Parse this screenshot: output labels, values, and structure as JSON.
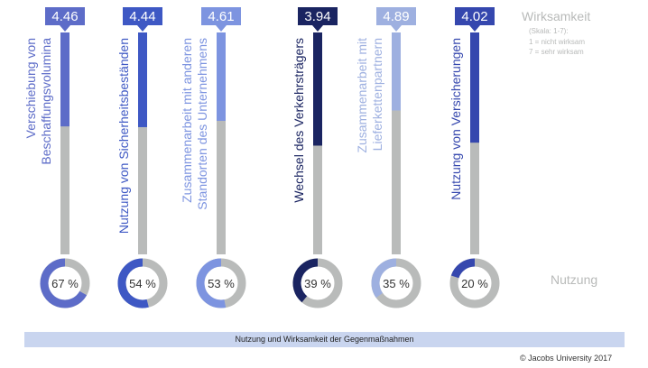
{
  "legend": {
    "title": "Wirksamkeit",
    "scale": "(Skala: 1-7):",
    "min": "1 = nicht wirksam",
    "max": "7 = sehr wirksam"
  },
  "usage_label": "Nutzung",
  "footer_caption": "Nutzung und Wirksamkeit der Gegenmaßnahmen",
  "credit": "© Jacobs University 2017",
  "colors": {
    "track": "#b9bbba",
    "background": "#ffffff"
  },
  "chart_data": {
    "type": "bar",
    "categories": [
      [
        "Verschiebung von",
        "Beschaffungsvolumina"
      ],
      [
        "Nutzung von Sicherheitsbeständen"
      ],
      [
        "Zusammenarbeit mit anderen",
        "Standorten des Unternehmens"
      ],
      [
        "Wechsel des Verkehrsträgers"
      ],
      [
        "Zusammenarbeit mit",
        "Lieferkettenpartnern"
      ],
      [
        "Nutzung von Versicherungen"
      ]
    ],
    "series": [
      {
        "values": [
          4.46,
          4.44,
          4.61,
          3.94,
          4.89,
          4.02
        ]
      },
      {
        "values": [
          67,
          54,
          53,
          39,
          35,
          20
        ]
      }
    ],
    "value_labels": [
      "4.46",
      "4.44",
      "4.61",
      "3.94",
      "4.89",
      "4.02"
    ],
    "percent_labels": [
      "67 %",
      "54 %",
      "53 %",
      "39 %",
      "35 %",
      "20 %"
    ],
    "colors": [
      "#5d6cc8",
      "#3e58c4",
      "#7d94e0",
      "#1a2461",
      "#9eb0e0",
      "#3547ae"
    ],
    "ylim": [
      1,
      7
    ]
  }
}
